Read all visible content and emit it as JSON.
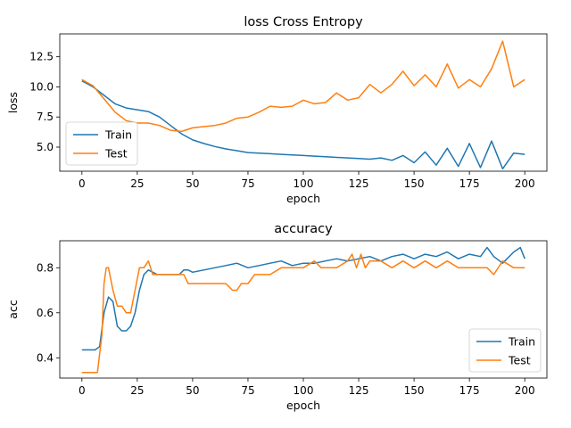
{
  "chart_data": [
    {
      "type": "line",
      "title": "loss Cross Entropy",
      "xlabel": "epoch",
      "ylabel": "loss",
      "xlim": [
        -10,
        210
      ],
      "ylim": [
        3.0,
        14.4
      ],
      "xticks": [
        0,
        25,
        50,
        75,
        100,
        125,
        150,
        175,
        200
      ],
      "yticks": [
        5.0,
        7.5,
        10.0,
        12.5
      ],
      "ytick_labels": [
        "5.0",
        "7.5",
        "10.0",
        "12.5"
      ],
      "legend": "lower-left",
      "grid": false,
      "series": [
        {
          "name": "Train",
          "color": "#1f77b4",
          "x": [
            0,
            5,
            10,
            15,
            20,
            25,
            30,
            35,
            40,
            45,
            50,
            55,
            60,
            65,
            70,
            75,
            80,
            85,
            90,
            95,
            100,
            105,
            110,
            115,
            120,
            125,
            130,
            135,
            140,
            145,
            150,
            155,
            160,
            165,
            170,
            175,
            180,
            185,
            190,
            195,
            200
          ],
          "y": [
            10.5,
            10.0,
            9.3,
            8.6,
            8.25,
            8.1,
            7.95,
            7.5,
            6.8,
            6.1,
            5.6,
            5.3,
            5.05,
            4.85,
            4.7,
            4.55,
            4.5,
            4.45,
            4.4,
            4.35,
            4.3,
            4.25,
            4.2,
            4.15,
            4.1,
            4.05,
            4.0,
            4.1,
            3.9,
            4.3,
            3.7,
            4.6,
            3.5,
            4.9,
            3.4,
            5.3,
            3.3,
            5.5,
            3.2,
            4.5,
            4.4
          ]
        },
        {
          "name": "Test",
          "color": "#ff7f0e",
          "x": [
            0,
            5,
            10,
            15,
            20,
            25,
            30,
            35,
            40,
            45,
            50,
            55,
            60,
            65,
            70,
            75,
            80,
            85,
            90,
            95,
            100,
            105,
            110,
            115,
            120,
            125,
            130,
            135,
            140,
            145,
            150,
            155,
            160,
            165,
            170,
            175,
            180,
            185,
            190,
            195,
            200
          ],
          "y": [
            10.6,
            10.1,
            9.0,
            7.9,
            7.2,
            7.0,
            7.0,
            6.8,
            6.4,
            6.3,
            6.6,
            6.7,
            6.8,
            7.0,
            7.4,
            7.5,
            7.9,
            8.4,
            8.3,
            8.4,
            8.9,
            8.6,
            8.7,
            9.5,
            8.9,
            9.1,
            10.2,
            9.5,
            10.2,
            11.3,
            10.1,
            11.0,
            10.0,
            11.9,
            9.9,
            10.6,
            10.0,
            11.5,
            13.8,
            10.0,
            10.6
          ]
        }
      ]
    },
    {
      "type": "line",
      "title": "accuracy",
      "xlabel": "epoch",
      "ylabel": "acc",
      "xlim": [
        -10,
        210
      ],
      "ylim": [
        0.31,
        0.92
      ],
      "xticks": [
        0,
        25,
        50,
        75,
        100,
        125,
        150,
        175,
        200
      ],
      "yticks": [
        0.4,
        0.6,
        0.8
      ],
      "ytick_labels": [
        "0.4",
        "0.6",
        "0.8"
      ],
      "legend": "lower-right",
      "grid": false,
      "series": [
        {
          "name": "Train",
          "color": "#1f77b4",
          "x": [
            0,
            3,
            6,
            8,
            10,
            12,
            14,
            16,
            18,
            20,
            22,
            24,
            26,
            28,
            30,
            32,
            34,
            36,
            38,
            40,
            42,
            44,
            46,
            48,
            50,
            55,
            60,
            65,
            70,
            75,
            80,
            85,
            90,
            95,
            100,
            105,
            110,
            115,
            120,
            125,
            130,
            135,
            140,
            145,
            150,
            155,
            160,
            165,
            170,
            175,
            180,
            183,
            186,
            190,
            195,
            198,
            200
          ],
          "y": [
            0.435,
            0.435,
            0.435,
            0.45,
            0.6,
            0.67,
            0.65,
            0.54,
            0.52,
            0.52,
            0.54,
            0.6,
            0.7,
            0.77,
            0.79,
            0.78,
            0.77,
            0.77,
            0.77,
            0.77,
            0.77,
            0.77,
            0.79,
            0.79,
            0.78,
            0.79,
            0.8,
            0.81,
            0.82,
            0.8,
            0.81,
            0.82,
            0.83,
            0.81,
            0.82,
            0.82,
            0.83,
            0.84,
            0.83,
            0.84,
            0.85,
            0.83,
            0.85,
            0.86,
            0.84,
            0.86,
            0.85,
            0.87,
            0.84,
            0.86,
            0.85,
            0.89,
            0.85,
            0.82,
            0.87,
            0.89,
            0.84
          ]
        },
        {
          "name": "Test",
          "color": "#ff7f0e",
          "x": [
            0,
            4,
            7,
            9,
            10,
            11,
            12,
            14,
            16,
            18,
            20,
            22,
            24,
            26,
            28,
            30,
            32,
            34,
            36,
            38,
            40,
            42,
            44,
            46,
            48,
            50,
            55,
            60,
            65,
            68,
            70,
            72,
            75,
            78,
            80,
            85,
            90,
            95,
            100,
            105,
            108,
            110,
            115,
            120,
            122,
            124,
            126,
            128,
            130,
            135,
            140,
            145,
            150,
            155,
            160,
            165,
            170,
            175,
            180,
            183,
            186,
            190,
            195,
            200
          ],
          "y": [
            0.335,
            0.335,
            0.335,
            0.5,
            0.73,
            0.8,
            0.8,
            0.7,
            0.63,
            0.63,
            0.6,
            0.6,
            0.7,
            0.8,
            0.8,
            0.83,
            0.77,
            0.77,
            0.77,
            0.77,
            0.77,
            0.77,
            0.77,
            0.77,
            0.73,
            0.73,
            0.73,
            0.73,
            0.73,
            0.7,
            0.7,
            0.73,
            0.73,
            0.77,
            0.77,
            0.77,
            0.8,
            0.8,
            0.8,
            0.83,
            0.8,
            0.8,
            0.8,
            0.83,
            0.86,
            0.8,
            0.86,
            0.8,
            0.83,
            0.83,
            0.8,
            0.83,
            0.8,
            0.83,
            0.8,
            0.83,
            0.8,
            0.8,
            0.8,
            0.8,
            0.77,
            0.83,
            0.8,
            0.8
          ]
        }
      ]
    }
  ]
}
